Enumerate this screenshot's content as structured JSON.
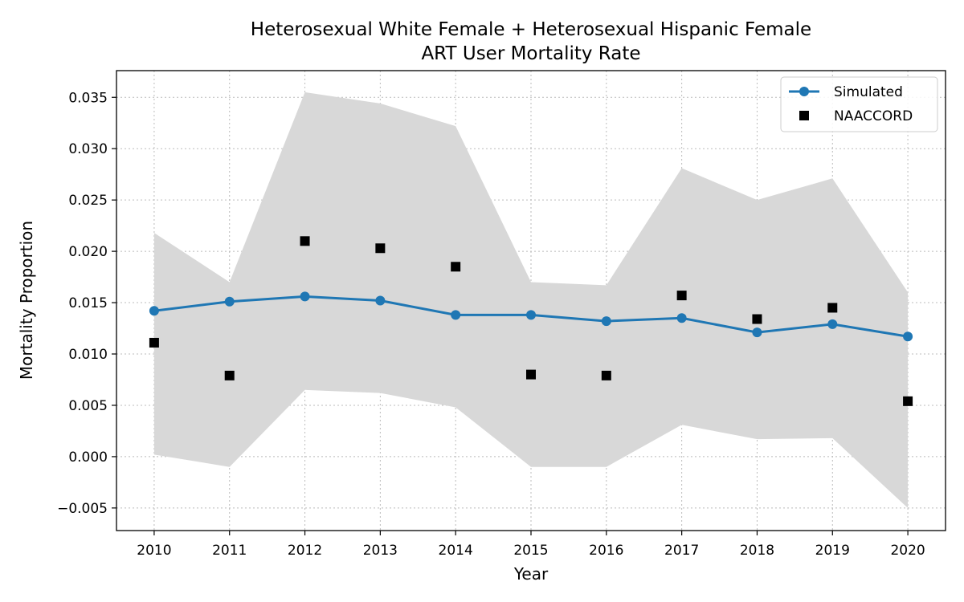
{
  "chart_data": {
    "type": "line",
    "title": "Heterosexual White Female + Heterosexual Hispanic Female",
    "subtitle": "ART User Mortality Rate",
    "xlabel": "Year",
    "ylabel": "Mortality Proportion",
    "x": [
      2010,
      2011,
      2012,
      2013,
      2014,
      2015,
      2016,
      2017,
      2018,
      2019,
      2020
    ],
    "xlim": [
      2009.5,
      2020.5
    ],
    "ylim": [
      -0.0072,
      0.0376
    ],
    "y_ticks": [
      -0.005,
      0.0,
      0.005,
      0.01,
      0.015,
      0.02,
      0.025,
      0.03,
      0.035
    ],
    "y_tick_labels": [
      "−0.005",
      "0.000",
      "0.005",
      "0.010",
      "0.015",
      "0.020",
      "0.025",
      "0.030",
      "0.035"
    ],
    "x_tick_labels": [
      "2010",
      "2011",
      "2012",
      "2013",
      "2014",
      "2015",
      "2016",
      "2017",
      "2018",
      "2019",
      "2020"
    ],
    "grid": true,
    "legend_position": "top-right",
    "band": {
      "upper": [
        0.0218,
        0.017,
        0.0355,
        0.0344,
        0.0322,
        0.017,
        0.0167,
        0.0281,
        0.025,
        0.0271,
        0.016
      ],
      "lower": [
        0.0002,
        -0.001,
        0.0065,
        0.0062,
        0.0048,
        -0.001,
        -0.001,
        0.0031,
        0.0017,
        0.0018,
        -0.005
      ],
      "color": "#d8d8d8"
    },
    "series": [
      {
        "name": "Simulated",
        "kind": "line-marker",
        "color": "#1f77b4",
        "values": [
          0.0142,
          0.0151,
          0.0156,
          0.0152,
          0.0138,
          0.0138,
          0.0132,
          0.0135,
          0.0121,
          0.0129,
          0.0117
        ]
      },
      {
        "name": "NAACCORD",
        "kind": "square-marker",
        "color": "#000000",
        "values": [
          0.0111,
          0.0079,
          0.021,
          0.0203,
          0.0185,
          0.008,
          0.0079,
          0.0157,
          0.0134,
          0.0145,
          0.0054
        ]
      }
    ]
  }
}
